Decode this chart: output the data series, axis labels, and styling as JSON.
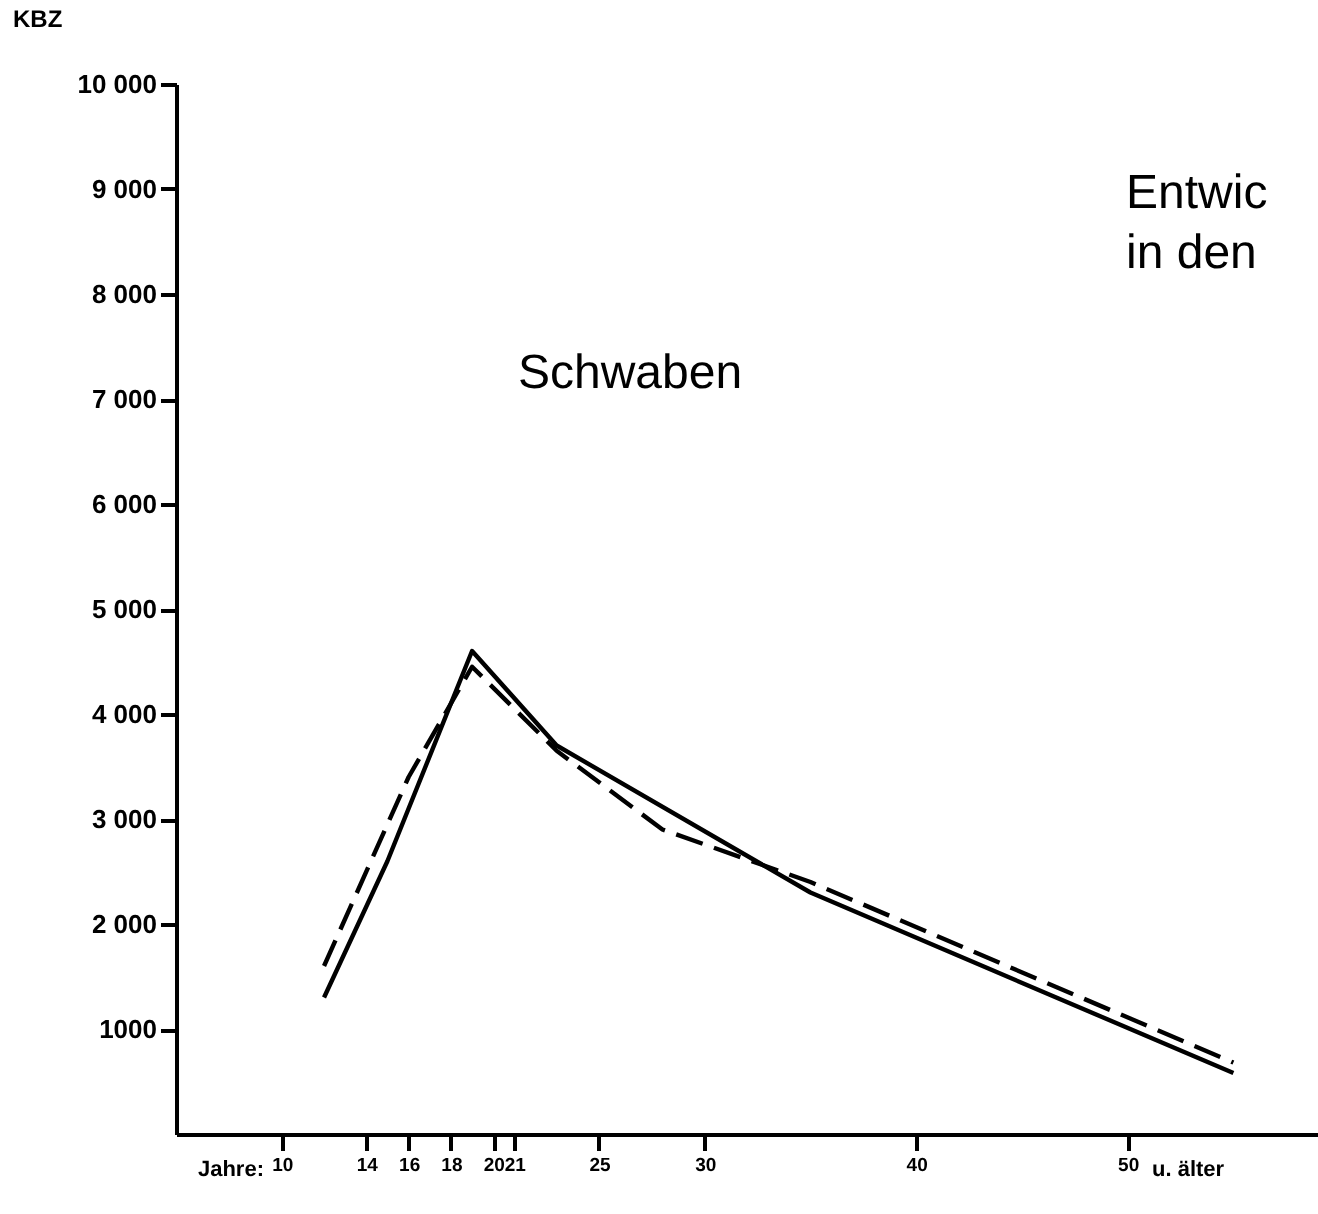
{
  "chart_data": {
    "type": "line",
    "title": "Entwic",
    "subtitle": "in den",
    "ylabel": "KBZ",
    "annotations": [
      "Schwaben",
      "Jahre:",
      "u. älter"
    ],
    "xlim": [
      5,
      59
    ],
    "xticks": [
      10,
      14,
      16,
      18,
      20,
      21,
      25,
      30,
      40,
      50
    ],
    "ylim": [
      0,
      10000
    ],
    "yticks": [
      {
        "value": 1000,
        "label": "1000"
      },
      {
        "value": 2000,
        "label": "2 000"
      },
      {
        "value": 3000,
        "label": "3 000"
      },
      {
        "value": 4000,
        "label": "4 000"
      },
      {
        "value": 5000,
        "label": "5 000"
      },
      {
        "value": 6000,
        "label": "6 000"
      },
      {
        "value": 7000,
        "label": "7 000"
      },
      {
        "value": 8000,
        "label": "8 000"
      },
      {
        "value": 9000,
        "label": "9 000"
      },
      {
        "value": 10000,
        "label": "10 000"
      }
    ],
    "grid": false,
    "series": [
      {
        "color": "#000000",
        "line_style": "solid",
        "x": [
          12,
          15,
          19,
          23,
          35,
          55
        ],
        "values": [
          1300,
          2600,
          4600,
          3700,
          2300,
          580
        ]
      },
      {
        "color": "#000000",
        "line_style": "dashed",
        "x": [
          12,
          16,
          19,
          23,
          28,
          35,
          55
        ],
        "values": [
          1600,
          3400,
          4450,
          3650,
          2900,
          2400,
          680
        ]
      }
    ]
  }
}
